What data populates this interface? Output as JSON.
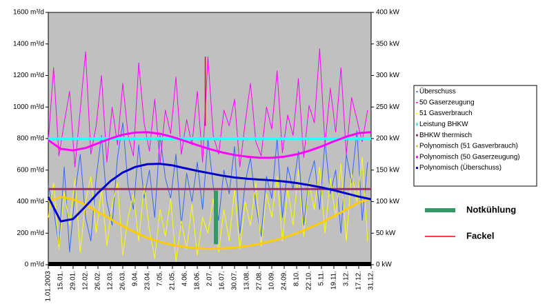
{
  "chart_data": {
    "type": "line",
    "ylim": [
      0,
      1600
    ],
    "yticks": [
      {
        "value": 0,
        "label": "0 m³/d"
      },
      {
        "value": 200,
        "label": "200 m³/d"
      },
      {
        "value": 400,
        "label": "400 m³/d"
      },
      {
        "value": 600,
        "label": "600 m³/d"
      },
      {
        "value": 800,
        "label": "800 m³/d"
      },
      {
        "value": 1000,
        "label": "1000 m³/d"
      },
      {
        "value": 1200,
        "label": "1200 m³/d"
      },
      {
        "value": 1400,
        "label": "1400 m³/d"
      },
      {
        "value": 1600,
        "label": "1600 m³/d"
      }
    ],
    "y2lim": [
      0,
      400
    ],
    "y2ticks": [
      {
        "value": 0,
        "label": "0 kW"
      },
      {
        "value": 50,
        "label": "50 kW"
      },
      {
        "value": 100,
        "label": "100 kW"
      },
      {
        "value": 150,
        "label": "150 kW"
      },
      {
        "value": 200,
        "label": "200 kW"
      },
      {
        "value": 250,
        "label": "250 kW"
      },
      {
        "value": 300,
        "label": "300 kW"
      },
      {
        "value": 350,
        "label": "350 kW"
      },
      {
        "value": 400,
        "label": "400 kW"
      }
    ],
    "xlim": [
      0,
      364
    ],
    "xticks": [
      {
        "value": 0,
        "label": "1.01.2003"
      },
      {
        "value": 14,
        "label": "15.01."
      },
      {
        "value": 28,
        "label": "29.01."
      },
      {
        "value": 42,
        "label": "12.02."
      },
      {
        "value": 56,
        "label": "26.02."
      },
      {
        "value": 70,
        "label": "12.03."
      },
      {
        "value": 84,
        "label": "26.03."
      },
      {
        "value": 98,
        "label": "9.04."
      },
      {
        "value": 112,
        "label": "23.04."
      },
      {
        "value": 126,
        "label": "7.05."
      },
      {
        "value": 140,
        "label": "21.05."
      },
      {
        "value": 154,
        "label": "4.06."
      },
      {
        "value": 168,
        "label": "18.06."
      },
      {
        "value": 182,
        "label": "2.07."
      },
      {
        "value": 196,
        "label": "16.07."
      },
      {
        "value": 210,
        "label": "30.07."
      },
      {
        "value": 224,
        "label": "13.08."
      },
      {
        "value": 238,
        "label": "27.08."
      },
      {
        "value": 252,
        "label": "10.09."
      },
      {
        "value": 266,
        "label": "24.09."
      },
      {
        "value": 280,
        "label": "8.10."
      },
      {
        "value": 294,
        "label": "22.10."
      },
      {
        "value": 308,
        "label": "5.11."
      },
      {
        "value": 322,
        "label": "19.11."
      },
      {
        "value": 336,
        "label": "3.12."
      },
      {
        "value": 350,
        "label": "17.12."
      },
      {
        "value": 364,
        "label": "31.12."
      }
    ],
    "series": [
      {
        "name": "Überschuss",
        "color": "#3366ff",
        "width": 1,
        "x": [
          0,
          6,
          12,
          18,
          24,
          30,
          36,
          42,
          48,
          54,
          60,
          66,
          72,
          78,
          84,
          90,
          96,
          102,
          108,
          114,
          120,
          126,
          132,
          138,
          144,
          150,
          156,
          162,
          168,
          174,
          180,
          186,
          192,
          198,
          204,
          210,
          216,
          222,
          228,
          234,
          240,
          246,
          252,
          258,
          264,
          270,
          276,
          282,
          288,
          294,
          300,
          306,
          312,
          318,
          324,
          330,
          336,
          342,
          348,
          354,
          360
        ],
        "values": [
          500,
          350,
          120,
          620,
          80,
          450,
          700,
          300,
          150,
          550,
          820,
          400,
          250,
          680,
          900,
          500,
          350,
          760,
          420,
          600,
          300,
          820,
          550,
          420,
          700,
          250,
          580,
          400,
          650,
          350,
          800,
          500,
          280,
          600,
          450,
          750,
          200,
          520,
          680,
          380,
          180,
          560,
          420,
          800,
          300,
          620,
          480,
          720,
          250,
          540,
          660,
          350,
          780,
          450,
          600,
          200,
          700,
          520,
          850,
          280,
          650
        ]
      },
      {
        "name": "50 Gaserzeugung",
        "color": "#ff00ff",
        "width": 1,
        "x": [
          0,
          6,
          12,
          18,
          24,
          30,
          36,
          42,
          48,
          54,
          60,
          66,
          72,
          78,
          84,
          90,
          96,
          102,
          108,
          114,
          120,
          126,
          132,
          138,
          144,
          150,
          156,
          162,
          168,
          174,
          180,
          186,
          192,
          198,
          204,
          210,
          216,
          222,
          228,
          234,
          240,
          246,
          252,
          258,
          264,
          270,
          276,
          282,
          288,
          294,
          300,
          306,
          312,
          318,
          324,
          330,
          336,
          342,
          348,
          354,
          360
        ],
        "values": [
          780,
          1250,
          690,
          900,
          1100,
          620,
          980,
          1350,
          700,
          880,
          1200,
          650,
          1000,
          760,
          1150,
          820,
          690,
          1280,
          900,
          720,
          1050,
          640,
          980,
          830,
          1190,
          700,
          920,
          760,
          1100,
          650,
          1320,
          820,
          700,
          980,
          880,
          1050,
          620,
          900,
          1150,
          780,
          690,
          1000,
          860,
          1230,
          710,
          950,
          820,
          1180,
          680,
          1010,
          900,
          1370,
          760,
          1120,
          840,
          1250,
          700,
          1060,
          920,
          780,
          980
        ]
      },
      {
        "name": "51 Gasverbrauch",
        "color": "#ffff00",
        "width": 1,
        "x": [
          0,
          6,
          12,
          18,
          24,
          30,
          36,
          42,
          48,
          54,
          60,
          66,
          72,
          78,
          84,
          90,
          96,
          102,
          108,
          114,
          120,
          126,
          132,
          138,
          144,
          150,
          156,
          162,
          168,
          174,
          180,
          186,
          192,
          198,
          204,
          210,
          216,
          222,
          228,
          234,
          240,
          246,
          252,
          258,
          264,
          270,
          276,
          282,
          288,
          294,
          300,
          306,
          312,
          318,
          324,
          330,
          336,
          342,
          348,
          354,
          360
        ],
        "values": [
          300,
          520,
          100,
          460,
          250,
          540,
          80,
          400,
          560,
          200,
          480,
          120,
          380,
          520,
          60,
          300,
          450,
          150,
          500,
          220,
          40,
          350,
          180,
          420,
          20,
          280,
          100,
          380,
          60,
          300,
          200,
          420,
          80,
          350,
          150,
          480,
          100,
          400,
          250,
          520,
          120,
          450,
          300,
          560,
          150,
          480,
          250,
          600,
          180,
          520,
          350,
          620,
          200,
          550,
          300,
          640,
          150,
          580,
          400,
          680,
          150
        ]
      },
      {
        "name": "Leistung BHKW",
        "color": "#33ffff",
        "width": 4,
        "x": [
          0,
          364
        ],
        "values": [
          800,
          800
        ]
      },
      {
        "name": "BHKW thermisch",
        "color": "#993366",
        "width": 3,
        "x": [
          0,
          364
        ],
        "values": [
          480,
          480
        ]
      },
      {
        "name": "Polynomisch (51 Gasverbrauch)",
        "color": "#ffcc00",
        "width": 3,
        "x": [
          0,
          14,
          28,
          42,
          56,
          70,
          84,
          98,
          112,
          126,
          140,
          154,
          168,
          182,
          196,
          210,
          224,
          238,
          252,
          266,
          280,
          294,
          308,
          322,
          336,
          350,
          364
        ],
        "values": [
          400,
          430,
          415,
          380,
          335,
          290,
          245,
          205,
          170,
          145,
          125,
          112,
          105,
          102,
          103,
          108,
          118,
          132,
          150,
          172,
          200,
          232,
          268,
          308,
          350,
          395,
          420
        ]
      },
      {
        "name": "Polynomisch (50 Gaserzeugung)",
        "color": "#ff00ff",
        "width": 3,
        "x": [
          0,
          14,
          28,
          42,
          56,
          70,
          84,
          98,
          112,
          126,
          140,
          154,
          168,
          182,
          196,
          210,
          224,
          238,
          252,
          266,
          280,
          294,
          308,
          322,
          336,
          350,
          364
        ],
        "values": [
          790,
          735,
          725,
          740,
          770,
          800,
          825,
          838,
          840,
          830,
          810,
          785,
          758,
          733,
          712,
          696,
          685,
          678,
          678,
          685,
          700,
          722,
          750,
          782,
          812,
          835,
          840
        ]
      },
      {
        "name": "Polynomisch (Überschuss)",
        "color": "#0000cc",
        "width": 3,
        "x": [
          0,
          14,
          28,
          42,
          56,
          70,
          84,
          98,
          112,
          126,
          140,
          154,
          168,
          182,
          196,
          210,
          224,
          238,
          252,
          266,
          280,
          294,
          308,
          322,
          336,
          350,
          364
        ],
        "values": [
          430,
          275,
          290,
          370,
          455,
          530,
          585,
          620,
          638,
          640,
          630,
          612,
          595,
          580,
          565,
          553,
          545,
          540,
          535,
          528,
          518,
          505,
          490,
          472,
          452,
          432,
          415
        ]
      }
    ],
    "markers": [
      {
        "name": "Notkühlung",
        "color": "#339966",
        "width": 6,
        "x": 189,
        "low": 130,
        "high": 470
      },
      {
        "name": "Fackel",
        "color": "#ff0000",
        "width": 1.5,
        "x": 177,
        "low": 880,
        "high": 1320
      }
    ]
  }
}
